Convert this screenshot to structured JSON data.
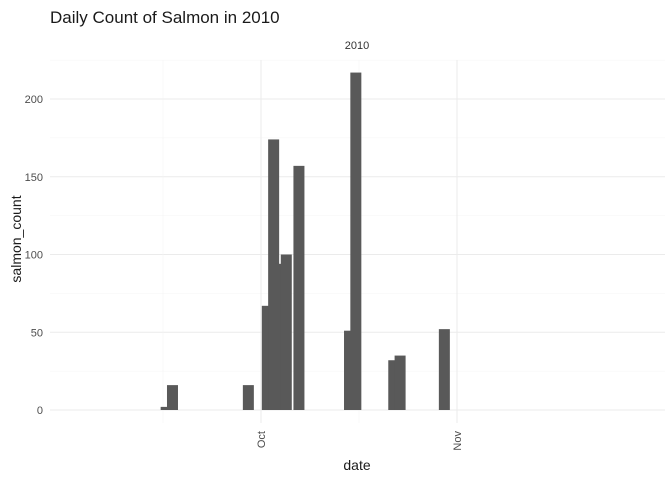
{
  "chart_data": {
    "type": "bar",
    "title": "Daily Count of Salmon in 2010",
    "facet_label": "2010",
    "xlabel": "date",
    "ylabel": "salmon_count",
    "x_axis_type": "date",
    "x_tick_labels": [
      "Oct",
      "Nov"
    ],
    "x_tick_dates": [
      "2010-10-01",
      "2010-11-01"
    ],
    "x_tick_label_rotation_deg": -90,
    "xlim": [
      "2010-09-15",
      "2010-11-01"
    ],
    "y_ticks": [
      0,
      50,
      100,
      150,
      200
    ],
    "ylim": [
      -12,
      225
    ],
    "grid": true,
    "bar_color": "#595959",
    "theme": "minimal",
    "bars": [
      {
        "date": "2010-09-16",
        "value": 2
      },
      {
        "date": "2010-09-17",
        "value": 16
      },
      {
        "date": "2010-09-29",
        "value": 16
      },
      {
        "date": "2010-10-02",
        "value": 67
      },
      {
        "date": "2010-10-03",
        "value": 174
      },
      {
        "date": "2010-10-04",
        "value": 94
      },
      {
        "date": "2010-10-05",
        "value": 100
      },
      {
        "date": "2010-10-07",
        "value": 157
      },
      {
        "date": "2010-10-15",
        "value": 51
      },
      {
        "date": "2010-10-16",
        "value": 217
      },
      {
        "date": "2010-10-22",
        "value": 32
      },
      {
        "date": "2010-10-23",
        "value": 35
      },
      {
        "date": "2010-10-30",
        "value": 52
      }
    ]
  }
}
